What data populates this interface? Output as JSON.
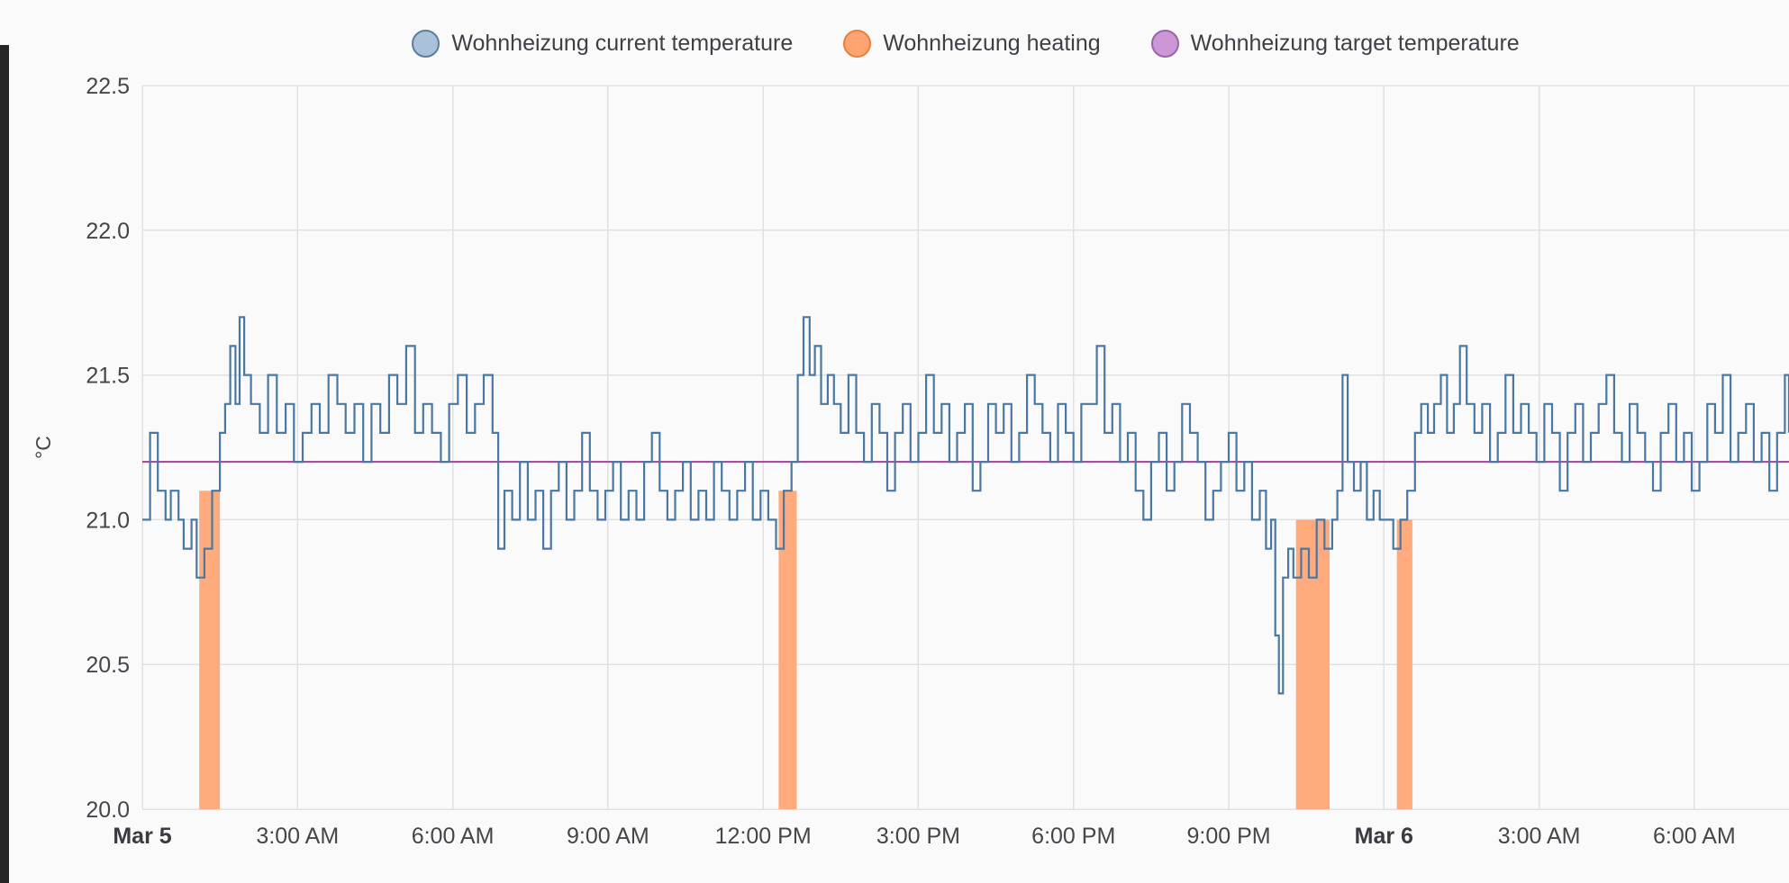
{
  "legend": {
    "items": [
      {
        "label": "Wohnheizung current temperature",
        "fill": "#a9c2d9",
        "stroke": "#5b7e9d"
      },
      {
        "label": "Wohnheizung heating",
        "fill": "#ffa470",
        "stroke": "#e8803f"
      },
      {
        "label": "Wohnheizung target temperature",
        "fill": "#cb98d5",
        "stroke": "#9a63ad"
      }
    ]
  },
  "chart_data": {
    "type": "line",
    "title": "",
    "xlabel": "",
    "ylabel": "°C",
    "ylim": [
      20.0,
      22.5
    ],
    "xlim": [
      0,
      31.83
    ],
    "x_unit": "hours since Mar 5 00:00",
    "grid": true,
    "grid_color": "#e1e1e1",
    "background": "#fafafa",
    "y_ticks": [
      "20.0",
      "20.5",
      "21.0",
      "21.5",
      "22.0",
      "22.5"
    ],
    "x_ticks": [
      {
        "t": 0,
        "label": "Mar 5",
        "bold": true
      },
      {
        "t": 3,
        "label": "3:00 AM",
        "bold": false
      },
      {
        "t": 6,
        "label": "6:00 AM",
        "bold": false
      },
      {
        "t": 9,
        "label": "9:00 AM",
        "bold": false
      },
      {
        "t": 12,
        "label": "12:00 PM",
        "bold": false
      },
      {
        "t": 15,
        "label": "3:00 PM",
        "bold": false
      },
      {
        "t": 18,
        "label": "6:00 PM",
        "bold": false
      },
      {
        "t": 21,
        "label": "9:00 PM",
        "bold": false
      },
      {
        "t": 24,
        "label": "Mar 6",
        "bold": true
      },
      {
        "t": 27,
        "label": "3:00 AM",
        "bold": false
      },
      {
        "t": 30,
        "label": "6:00 AM",
        "bold": false
      }
    ],
    "series": [
      {
        "name": "Wohnheizung current temperature",
        "type": "step-line",
        "color": "#4a78a2",
        "points": [
          [
            0,
            21.0
          ],
          [
            0.15,
            21.3
          ],
          [
            0.3,
            21.1
          ],
          [
            0.45,
            21.0
          ],
          [
            0.55,
            21.1
          ],
          [
            0.7,
            21.0
          ],
          [
            0.8,
            20.9
          ],
          [
            0.95,
            21.0
          ],
          [
            1.05,
            20.8
          ],
          [
            1.2,
            20.9
          ],
          [
            1.35,
            21.1
          ],
          [
            1.5,
            21.3
          ],
          [
            1.6,
            21.4
          ],
          [
            1.7,
            21.6
          ],
          [
            1.8,
            21.4
          ],
          [
            1.88,
            21.7
          ],
          [
            1.97,
            21.5
          ],
          [
            2.1,
            21.4
          ],
          [
            2.27,
            21.3
          ],
          [
            2.43,
            21.5
          ],
          [
            2.6,
            21.3
          ],
          [
            2.77,
            21.4
          ],
          [
            2.93,
            21.2
          ],
          [
            3.1,
            21.3
          ],
          [
            3.27,
            21.4
          ],
          [
            3.43,
            21.3
          ],
          [
            3.6,
            21.5
          ],
          [
            3.77,
            21.4
          ],
          [
            3.93,
            21.3
          ],
          [
            4.1,
            21.4
          ],
          [
            4.27,
            21.2
          ],
          [
            4.43,
            21.4
          ],
          [
            4.6,
            21.3
          ],
          [
            4.77,
            21.5
          ],
          [
            4.93,
            21.4
          ],
          [
            5.1,
            21.6
          ],
          [
            5.27,
            21.3
          ],
          [
            5.43,
            21.4
          ],
          [
            5.6,
            21.3
          ],
          [
            5.77,
            21.2
          ],
          [
            5.93,
            21.4
          ],
          [
            6.1,
            21.5
          ],
          [
            6.27,
            21.3
          ],
          [
            6.43,
            21.4
          ],
          [
            6.6,
            21.5
          ],
          [
            6.77,
            21.3
          ],
          [
            6.88,
            20.9
          ],
          [
            7.0,
            21.1
          ],
          [
            7.15,
            21.0
          ],
          [
            7.3,
            21.2
          ],
          [
            7.45,
            21.0
          ],
          [
            7.6,
            21.1
          ],
          [
            7.75,
            20.9
          ],
          [
            7.9,
            21.1
          ],
          [
            8.05,
            21.2
          ],
          [
            8.2,
            21.0
          ],
          [
            8.35,
            21.1
          ],
          [
            8.5,
            21.3
          ],
          [
            8.65,
            21.1
          ],
          [
            8.8,
            21.0
          ],
          [
            8.95,
            21.1
          ],
          [
            9.1,
            21.2
          ],
          [
            9.25,
            21.0
          ],
          [
            9.4,
            21.1
          ],
          [
            9.55,
            21.0
          ],
          [
            9.7,
            21.2
          ],
          [
            9.85,
            21.3
          ],
          [
            10.0,
            21.1
          ],
          [
            10.15,
            21.0
          ],
          [
            10.3,
            21.1
          ],
          [
            10.45,
            21.2
          ],
          [
            10.6,
            21.0
          ],
          [
            10.75,
            21.1
          ],
          [
            10.9,
            21.0
          ],
          [
            11.05,
            21.2
          ],
          [
            11.2,
            21.1
          ],
          [
            11.35,
            21.0
          ],
          [
            11.5,
            21.1
          ],
          [
            11.65,
            21.2
          ],
          [
            11.8,
            21.0
          ],
          [
            11.95,
            21.1
          ],
          [
            12.1,
            21.0
          ],
          [
            12.25,
            20.9
          ],
          [
            12.4,
            21.1
          ],
          [
            12.55,
            21.2
          ],
          [
            12.67,
            21.5
          ],
          [
            12.78,
            21.7
          ],
          [
            12.9,
            21.5
          ],
          [
            13.0,
            21.6
          ],
          [
            13.12,
            21.4
          ],
          [
            13.25,
            21.5
          ],
          [
            13.37,
            21.4
          ],
          [
            13.5,
            21.3
          ],
          [
            13.65,
            21.5
          ],
          [
            13.8,
            21.3
          ],
          [
            13.95,
            21.2
          ],
          [
            14.1,
            21.4
          ],
          [
            14.25,
            21.3
          ],
          [
            14.4,
            21.1
          ],
          [
            14.55,
            21.3
          ],
          [
            14.7,
            21.4
          ],
          [
            14.85,
            21.2
          ],
          [
            15.0,
            21.3
          ],
          [
            15.15,
            21.5
          ],
          [
            15.3,
            21.3
          ],
          [
            15.45,
            21.4
          ],
          [
            15.6,
            21.2
          ],
          [
            15.75,
            21.3
          ],
          [
            15.9,
            21.4
          ],
          [
            16.05,
            21.1
          ],
          [
            16.2,
            21.2
          ],
          [
            16.35,
            21.4
          ],
          [
            16.5,
            21.3
          ],
          [
            16.65,
            21.4
          ],
          [
            16.8,
            21.2
          ],
          [
            16.95,
            21.3
          ],
          [
            17.1,
            21.5
          ],
          [
            17.25,
            21.4
          ],
          [
            17.4,
            21.3
          ],
          [
            17.55,
            21.2
          ],
          [
            17.7,
            21.4
          ],
          [
            17.85,
            21.3
          ],
          [
            18.0,
            21.2
          ],
          [
            18.15,
            21.4
          ],
          [
            18.3,
            21.4
          ],
          [
            18.45,
            21.6
          ],
          [
            18.6,
            21.3
          ],
          [
            18.75,
            21.4
          ],
          [
            18.9,
            21.2
          ],
          [
            19.05,
            21.3
          ],
          [
            19.2,
            21.1
          ],
          [
            19.35,
            21.0
          ],
          [
            19.5,
            21.2
          ],
          [
            19.65,
            21.3
          ],
          [
            19.8,
            21.1
          ],
          [
            19.95,
            21.2
          ],
          [
            20.1,
            21.4
          ],
          [
            20.25,
            21.3
          ],
          [
            20.4,
            21.2
          ],
          [
            20.55,
            21.0
          ],
          [
            20.7,
            21.1
          ],
          [
            20.85,
            21.2
          ],
          [
            21.0,
            21.3
          ],
          [
            21.15,
            21.1
          ],
          [
            21.3,
            21.2
          ],
          [
            21.45,
            21.0
          ],
          [
            21.6,
            21.1
          ],
          [
            21.72,
            20.9
          ],
          [
            21.82,
            21.0
          ],
          [
            21.9,
            20.6
          ],
          [
            21.97,
            20.4
          ],
          [
            22.05,
            20.8
          ],
          [
            22.15,
            20.9
          ],
          [
            22.25,
            20.8
          ],
          [
            22.4,
            20.9
          ],
          [
            22.55,
            20.8
          ],
          [
            22.7,
            21.0
          ],
          [
            22.85,
            20.9
          ],
          [
            23.0,
            21.0
          ],
          [
            23.1,
            21.1
          ],
          [
            23.2,
            21.5
          ],
          [
            23.3,
            21.2
          ],
          [
            23.42,
            21.1
          ],
          [
            23.55,
            21.2
          ],
          [
            23.67,
            21.0
          ],
          [
            23.8,
            21.1
          ],
          [
            23.92,
            21.0
          ],
          [
            24.05,
            21.0
          ],
          [
            24.18,
            20.9
          ],
          [
            24.32,
            21.0
          ],
          [
            24.45,
            21.1
          ],
          [
            24.6,
            21.3
          ],
          [
            24.72,
            21.4
          ],
          [
            24.85,
            21.3
          ],
          [
            24.97,
            21.4
          ],
          [
            25.1,
            21.5
          ],
          [
            25.22,
            21.3
          ],
          [
            25.35,
            21.4
          ],
          [
            25.47,
            21.6
          ],
          [
            25.6,
            21.4
          ],
          [
            25.75,
            21.3
          ],
          [
            25.9,
            21.4
          ],
          [
            26.05,
            21.2
          ],
          [
            26.2,
            21.3
          ],
          [
            26.35,
            21.5
          ],
          [
            26.5,
            21.3
          ],
          [
            26.65,
            21.4
          ],
          [
            26.8,
            21.3
          ],
          [
            26.95,
            21.2
          ],
          [
            27.1,
            21.4
          ],
          [
            27.25,
            21.3
          ],
          [
            27.4,
            21.1
          ],
          [
            27.55,
            21.3
          ],
          [
            27.7,
            21.4
          ],
          [
            27.85,
            21.2
          ],
          [
            28.0,
            21.3
          ],
          [
            28.15,
            21.4
          ],
          [
            28.3,
            21.5
          ],
          [
            28.45,
            21.3
          ],
          [
            28.6,
            21.2
          ],
          [
            28.75,
            21.4
          ],
          [
            28.9,
            21.3
          ],
          [
            29.05,
            21.2
          ],
          [
            29.2,
            21.1
          ],
          [
            29.35,
            21.3
          ],
          [
            29.5,
            21.4
          ],
          [
            29.65,
            21.2
          ],
          [
            29.8,
            21.3
          ],
          [
            29.95,
            21.1
          ],
          [
            30.1,
            21.2
          ],
          [
            30.25,
            21.4
          ],
          [
            30.4,
            21.3
          ],
          [
            30.55,
            21.5
          ],
          [
            30.7,
            21.2
          ],
          [
            30.85,
            21.3
          ],
          [
            31.0,
            21.4
          ],
          [
            31.15,
            21.2
          ],
          [
            31.3,
            21.3
          ],
          [
            31.45,
            21.1
          ],
          [
            31.6,
            21.3
          ],
          [
            31.75,
            21.5
          ],
          [
            31.83,
            21.3
          ]
        ]
      },
      {
        "name": "Wohnheizung heating",
        "type": "bars",
        "color": "#ffab7d",
        "intervals": [
          {
            "start": 1.1,
            "end": 1.5,
            "top": 21.1
          },
          {
            "start": 12.3,
            "end": 12.65,
            "top": 21.1
          },
          {
            "start": 22.3,
            "end": 22.95,
            "top": 21.0
          },
          {
            "start": 24.25,
            "end": 24.55,
            "top": 21.0
          }
        ]
      },
      {
        "name": "Wohnheizung target temperature",
        "type": "line",
        "color": "#a4509c",
        "value": 21.2
      }
    ]
  }
}
